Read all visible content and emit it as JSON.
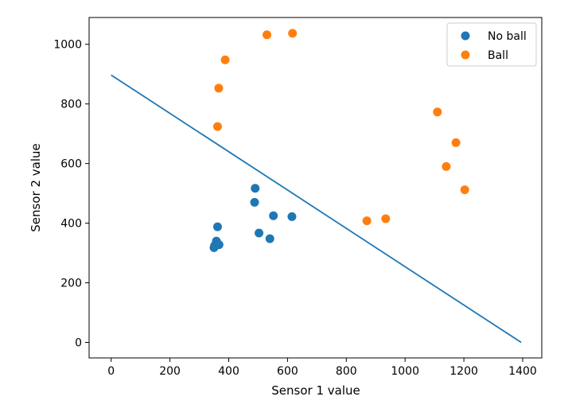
{
  "chart_data": {
    "type": "scatter",
    "xlabel": "Sensor 1 value",
    "ylabel": "Sensor 2 value",
    "xlim": [
      -75,
      1465
    ],
    "ylim": [
      -52,
      1090
    ],
    "xticks": [
      0,
      200,
      400,
      600,
      800,
      1000,
      1200,
      1400
    ],
    "yticks": [
      0,
      200,
      400,
      600,
      800,
      1000
    ],
    "grid": false,
    "legend_position": "top-right",
    "series": [
      {
        "name": "No ball",
        "type": "scatter",
        "color": "#1f77b4",
        "points": [
          [
            362,
            388
          ],
          [
            358,
            340
          ],
          [
            352,
            325
          ],
          [
            350,
            318
          ],
          [
            367,
            328
          ],
          [
            490,
            517
          ],
          [
            488,
            470
          ],
          [
            503,
            367
          ],
          [
            540,
            348
          ],
          [
            552,
            425
          ],
          [
            615,
            422
          ]
        ]
      },
      {
        "name": "Ball",
        "type": "scatter",
        "color": "#ff7f0e",
        "points": [
          [
            362,
            724
          ],
          [
            366,
            853
          ],
          [
            388,
            948
          ],
          [
            530,
            1032
          ],
          [
            617,
            1037
          ],
          [
            870,
            408
          ],
          [
            934,
            415
          ],
          [
            1110,
            773
          ],
          [
            1140,
            590
          ],
          [
            1173,
            670
          ],
          [
            1203,
            512
          ]
        ]
      },
      {
        "type": "line",
        "color": "#1f77b4",
        "points": [
          [
            0,
            897
          ],
          [
            1395,
            0
          ]
        ]
      }
    ]
  }
}
